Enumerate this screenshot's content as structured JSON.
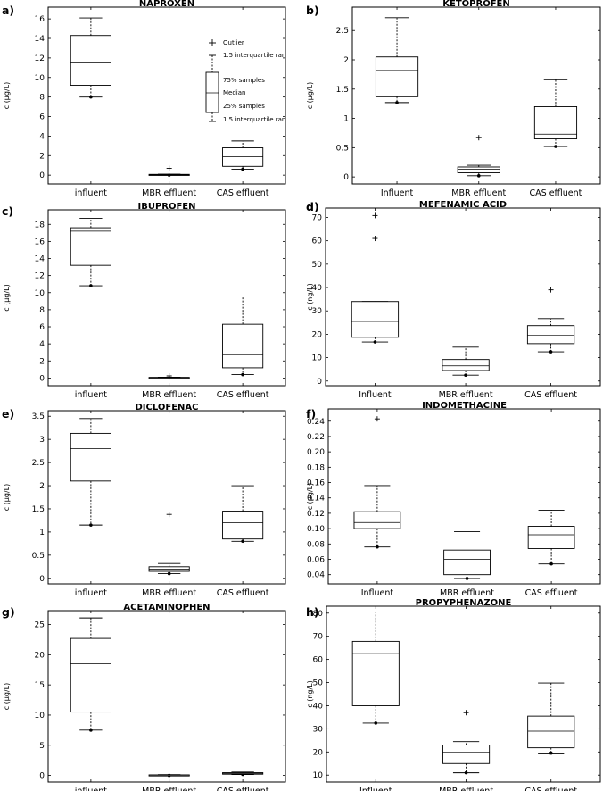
{
  "figure": {
    "chart_data": [
      {
        "type": "box",
        "panel_label": "a)",
        "title": "NAPROXEN",
        "ylabel": "c (µg/L)",
        "categories": [
          "influent",
          "MBR effluent",
          "CAS effluent"
        ],
        "ylim": [
          -0.9,
          17.2
        ],
        "yticks": [
          0,
          2,
          4,
          6,
          8,
          10,
          12,
          14,
          16
        ],
        "ytick_labels": [
          "0",
          "2",
          "4",
          "6",
          "8",
          "10",
          "12",
          "14",
          "16"
        ],
        "boxes": [
          {
            "whisker_low": 8.0,
            "q1": 9.2,
            "median": 11.5,
            "q3": 14.3,
            "whisker_high": 16.1,
            "outliers": []
          },
          {
            "whisker_low": 0.0,
            "q1": 0.02,
            "median": 0.05,
            "q3": 0.08,
            "whisker_high": 0.1,
            "outliers": [
              0.7
            ]
          },
          {
            "whisker_low": 0.6,
            "q1": 0.9,
            "median": 1.9,
            "q3": 2.8,
            "whisker_high": 3.5,
            "outliers": []
          }
        ],
        "legend": {
          "outlier": "Outlier",
          "iqr_high": "1.5 interquartile ran",
          "q3": "75% samples",
          "median": "Median",
          "q1": "25% samples",
          "iqr_low": "1.5 interquartile ran"
        }
      },
      {
        "type": "box",
        "panel_label": "b)",
        "title": "KETOPROFEN",
        "ylabel": "c (µg/L)",
        "categories": [
          "Influent",
          "MBR effluent",
          "CAS effluent"
        ],
        "ylim": [
          -0.12,
          2.9
        ],
        "yticks": [
          0,
          0.5,
          1,
          1.5,
          2,
          2.5
        ],
        "ytick_labels": [
          "0",
          "0.5",
          "1",
          "1.5",
          "2",
          "2.5"
        ],
        "boxes": [
          {
            "whisker_low": 1.27,
            "q1": 1.37,
            "median": 1.82,
            "q3": 2.05,
            "whisker_high": 2.72,
            "outliers": []
          },
          {
            "whisker_low": 0.02,
            "q1": 0.07,
            "median": 0.13,
            "q3": 0.17,
            "whisker_high": 0.2,
            "outliers": [
              0.67
            ]
          },
          {
            "whisker_low": 0.52,
            "q1": 0.65,
            "median": 0.73,
            "q3": 1.2,
            "whisker_high": 1.66,
            "outliers": []
          }
        ]
      },
      {
        "type": "box",
        "panel_label": "c)",
        "title": "IBUPROFEN",
        "ylabel": "c (µg/L)",
        "categories": [
          "influent",
          "MBR effluent",
          "CAS effluent"
        ],
        "ylim": [
          -0.9,
          19.7
        ],
        "yticks": [
          0,
          2,
          4,
          6,
          8,
          10,
          12,
          14,
          16,
          18
        ],
        "ytick_labels": [
          "0",
          "2",
          "4",
          "6",
          "8",
          "10",
          "12",
          "14",
          "16",
          "18"
        ],
        "boxes": [
          {
            "whisker_low": 10.8,
            "q1": 13.2,
            "median": 17.2,
            "q3": 17.6,
            "whisker_high": 18.7,
            "outliers": []
          },
          {
            "whisker_low": 0.0,
            "q1": 0.02,
            "median": 0.05,
            "q3": 0.08,
            "whisker_high": 0.1,
            "outliers": [
              0.25
            ]
          },
          {
            "whisker_low": 0.4,
            "q1": 1.2,
            "median": 2.7,
            "q3": 6.3,
            "whisker_high": 9.6,
            "outliers": []
          }
        ]
      },
      {
        "type": "box",
        "panel_label": "d)",
        "title": "MEFENAMIC ACID",
        "ylabel": "c (ng/L)",
        "categories": [
          "Influent",
          "MBR effluent",
          "CAS effluent"
        ],
        "ylim": [
          -2,
          74
        ],
        "yticks": [
          0,
          10,
          20,
          30,
          40,
          50,
          60,
          70
        ],
        "ytick_labels": [
          "0",
          "10",
          "20",
          "30",
          "40",
          "50",
          "60",
          "70"
        ],
        "boxes": [
          {
            "whisker_low": 16.7,
            "q1": 18.7,
            "median": 25.5,
            "q3": 34.0,
            "whisker_high": 34.0,
            "outliers": [
              61.0,
              70.8
            ]
          },
          {
            "whisker_low": 2.5,
            "q1": 4.5,
            "median": 6.5,
            "q3": 9.2,
            "whisker_high": 14.5,
            "outliers": []
          },
          {
            "whisker_low": 12.5,
            "q1": 16.0,
            "median": 19.5,
            "q3": 23.7,
            "whisker_high": 26.7,
            "outliers": [
              39.0
            ]
          }
        ]
      },
      {
        "type": "box",
        "panel_label": "e)",
        "title": "DICLOFENAC",
        "ylabel": "c (µg/L)",
        "categories": [
          "influent",
          "MBR effluent",
          "CAS effluent"
        ],
        "ylim": [
          -0.12,
          3.62
        ],
        "yticks": [
          0,
          0.5,
          1,
          1.5,
          2,
          2.5,
          3,
          3.5
        ],
        "ytick_labels": [
          "0",
          "0.5",
          "1",
          "1.5",
          "2",
          "2.5",
          "3",
          "3.5"
        ],
        "boxes": [
          {
            "whisker_low": 1.15,
            "q1": 2.1,
            "median": 2.8,
            "q3": 3.13,
            "whisker_high": 3.45,
            "outliers": []
          },
          {
            "whisker_low": 0.1,
            "q1": 0.15,
            "median": 0.2,
            "q3": 0.25,
            "whisker_high": 0.32,
            "outliers": [
              1.38
            ]
          },
          {
            "whisker_low": 0.8,
            "q1": 0.85,
            "median": 1.2,
            "q3": 1.45,
            "whisker_high": 2.0,
            "outliers": []
          }
        ]
      },
      {
        "type": "box",
        "panel_label": "f)",
        "title": "INDOMETHACINE",
        "ylabel": "c (µg/L)",
        "categories": [
          "Influent",
          "MBR effluent",
          "CAS effluent"
        ],
        "ylim": [
          0.028,
          0.256
        ],
        "yticks": [
          0.04,
          0.06,
          0.08,
          0.1,
          0.12,
          0.14,
          0.16,
          0.18,
          0.2,
          0.22,
          0.24
        ],
        "ytick_labels": [
          "0.04",
          "0.06",
          "0.08",
          "0.10",
          "0.12",
          "0.14",
          "0.16",
          "0.18",
          "0.20",
          "0.22",
          "0.24"
        ],
        "boxes": [
          {
            "whisker_low": 0.076,
            "q1": 0.1,
            "median": 0.108,
            "q3": 0.122,
            "whisker_high": 0.156,
            "outliers": [
              0.243
            ]
          },
          {
            "whisker_low": 0.035,
            "q1": 0.04,
            "median": 0.06,
            "q3": 0.072,
            "whisker_high": 0.096,
            "outliers": []
          },
          {
            "whisker_low": 0.054,
            "q1": 0.074,
            "median": 0.092,
            "q3": 0.103,
            "whisker_high": 0.124,
            "outliers": []
          }
        ]
      },
      {
        "type": "box",
        "panel_label": "g)",
        "title": "ACETAMINOPHEN",
        "ylabel": "c (µg/L)",
        "categories": [
          "influent",
          "MBR effluent",
          "CAS effluent"
        ],
        "ylim": [
          -1.1,
          27.3
        ],
        "yticks": [
          0,
          5,
          10,
          15,
          20,
          25
        ],
        "ytick_labels": [
          "0",
          "5",
          "10",
          "15",
          "20",
          "25"
        ],
        "boxes": [
          {
            "whisker_low": 7.5,
            "q1": 10.5,
            "median": 18.5,
            "q3": 22.7,
            "whisker_high": 26.1,
            "outliers": []
          },
          {
            "whisker_low": 0.0,
            "q1": 0.03,
            "median": 0.06,
            "q3": 0.09,
            "whisker_high": 0.12,
            "outliers": []
          },
          {
            "whisker_low": 0.15,
            "q1": 0.2,
            "median": 0.3,
            "q3": 0.45,
            "whisker_high": 0.55,
            "outliers": []
          }
        ]
      },
      {
        "type": "box",
        "panel_label": "h)",
        "title": "PROPYPHENAZONE",
        "ylabel": "c (ng/L)",
        "categories": [
          "Influent",
          "MBR effluent",
          "CAS effluent"
        ],
        "ylim": [
          7,
          83
        ],
        "yticks": [
          10,
          20,
          30,
          40,
          50,
          60,
          70,
          80
        ],
        "ytick_labels": [
          "10",
          "20",
          "30",
          "40",
          "50",
          "60",
          "70",
          "80"
        ],
        "boxes": [
          {
            "whisker_low": 32.5,
            "q1": 40.0,
            "median": 62.5,
            "q3": 67.8,
            "whisker_high": 80.5,
            "outliers": []
          },
          {
            "whisker_low": 11.0,
            "q1": 15.0,
            "median": 20.0,
            "q3": 23.0,
            "whisker_high": 24.5,
            "outliers": [
              37.0
            ]
          },
          {
            "whisker_low": 19.5,
            "q1": 21.8,
            "median": 29.0,
            "q3": 35.5,
            "whisker_high": 49.8,
            "outliers": []
          }
        ]
      }
    ]
  }
}
